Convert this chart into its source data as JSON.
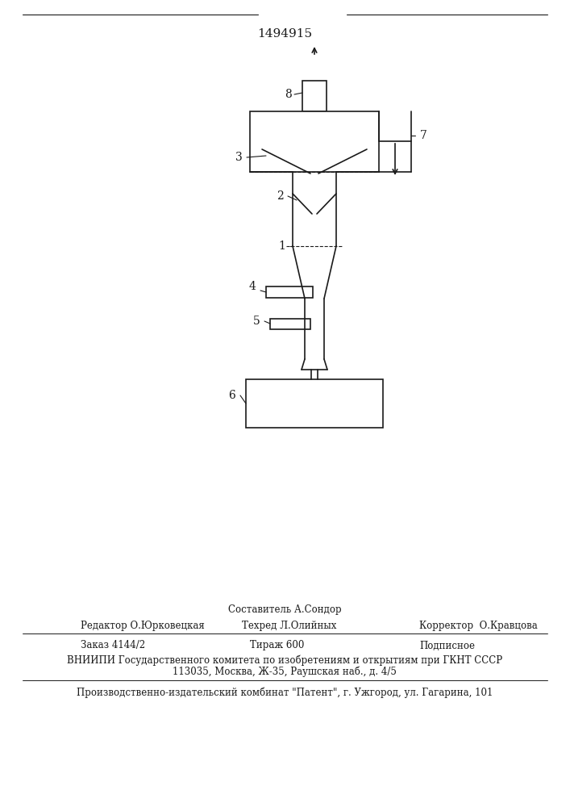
{
  "patent_number": "1494915",
  "bg_color": "#ffffff",
  "line_color": "#1a1a1a",
  "lw": 1.2,
  "footer": {
    "row_sestavitel": "Составитель А.Сондор",
    "row_redaktor": "Редактор О.Юрковецкая",
    "row_tehred": "Техред Л.Олийных",
    "row_korrektor": "Корректор  О.Кравцова",
    "row_zakaz": "Заказ 4144/2",
    "row_tirazh": "Тираж 600",
    "row_podpisnoe": "Подписное",
    "vniiipi": "ВНИИПИ Государственного комитета по изобретениям и открытиям при ГКНТ СССР",
    "address": "113035, Москва, Ж-35, Раушская наб., д. 4/5",
    "proizv": "Производственно-издательский комбинат \"Патент\", г. Ужгород, ул. Гагарина, 101"
  }
}
